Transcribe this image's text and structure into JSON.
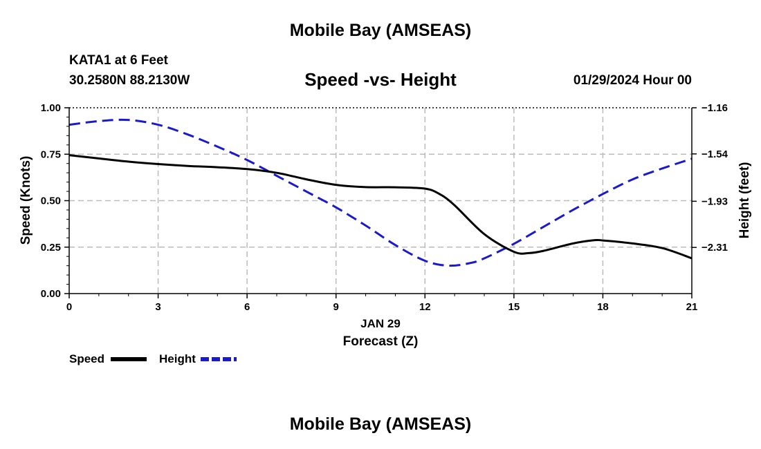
{
  "header": {
    "title": "Mobile Bay (AMSEAS)",
    "station": "KATA1 at 6 Feet",
    "coordinates": "30.2580N  88.2130W",
    "chart_title": "Speed -vs- Height",
    "datetime": "01/29/2024 Hour 00"
  },
  "footer": {
    "title": "Mobile Bay (AMSEAS)"
  },
  "colors": {
    "speed": "#000000",
    "height": "#1a1acc",
    "grid": "#bbbbbb"
  },
  "chart_data": {
    "type": "line",
    "title": "Speed -vs- Height",
    "xlabel": "Forecast (Z)",
    "xsublabel": "JAN 29",
    "ylabel": "Speed (Knots)",
    "y2label": "Height (feet)",
    "xlim": [
      0,
      21
    ],
    "ylim": [
      0,
      1.0
    ],
    "y2lim": [
      -2.69,
      -1.16
    ],
    "x_ticks": [
      "0",
      "3",
      "6",
      "9",
      "12",
      "15",
      "18",
      "21"
    ],
    "y_ticks": [
      "0.00",
      "0.25",
      "0.50",
      "0.75",
      "1.00"
    ],
    "y2_ticks": [
      "−1.16",
      "−1.54",
      "−1.93",
      "−2.31"
    ],
    "y2_tick_values": [
      -1.16,
      -1.54,
      -1.93,
      -2.31
    ],
    "grid": true,
    "series": [
      {
        "name": "Speed",
        "axis": "left",
        "style": "solid",
        "x": [
          0,
          1,
          2,
          3,
          4,
          5,
          6,
          7,
          8,
          9,
          10,
          11,
          12,
          12.5,
          13,
          14,
          15,
          15.5,
          16,
          17,
          17.7,
          18,
          19,
          20,
          21
        ],
        "y": [
          0.745,
          0.727,
          0.71,
          0.697,
          0.687,
          0.68,
          0.67,
          0.65,
          0.615,
          0.585,
          0.573,
          0.572,
          0.565,
          0.535,
          0.475,
          0.32,
          0.225,
          0.218,
          0.23,
          0.27,
          0.287,
          0.286,
          0.27,
          0.245,
          0.19
        ]
      },
      {
        "name": "Height",
        "axis": "right",
        "style": "dashed",
        "x": [
          0,
          1,
          2,
          3,
          4,
          5,
          6,
          7,
          8,
          9,
          10,
          11,
          12,
          12.8,
          13.5,
          14,
          15,
          16,
          17,
          18,
          19,
          20,
          21
        ],
        "y": [
          -1.3,
          -1.27,
          -1.26,
          -1.3,
          -1.38,
          -1.48,
          -1.59,
          -1.72,
          -1.85,
          -1.98,
          -2.13,
          -2.29,
          -2.42,
          -2.46,
          -2.44,
          -2.4,
          -2.28,
          -2.14,
          -2.0,
          -1.87,
          -1.75,
          -1.66,
          -1.58
        ]
      }
    ],
    "legend": [
      {
        "label": "Speed"
      },
      {
        "label": "Height"
      }
    ]
  }
}
